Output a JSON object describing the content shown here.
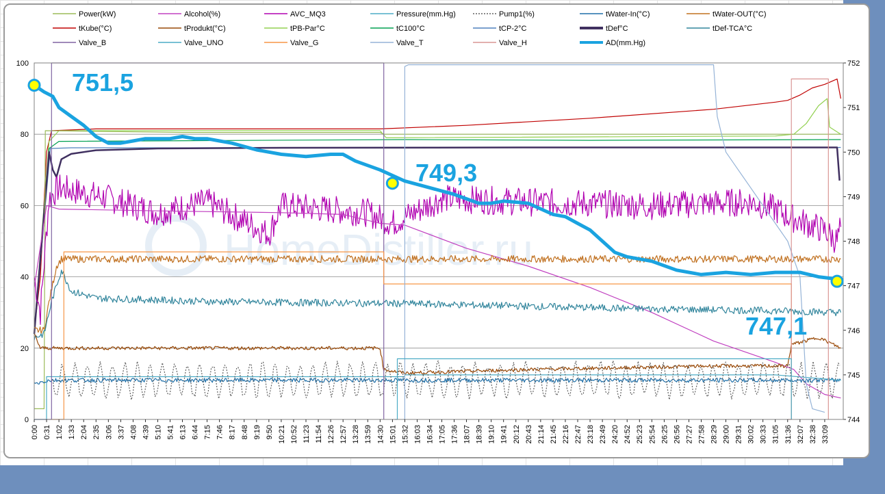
{
  "chart_data": {
    "type": "line",
    "legend": [
      {
        "name": "Power(kW)",
        "color": "#9bbb59",
        "dash": ""
      },
      {
        "name": "Alcohol(%)",
        "color": "#c040c0",
        "dash": ""
      },
      {
        "name": "AVC_MQ3",
        "color": "#b000b0",
        "dash": ""
      },
      {
        "name": "Pressure(mm.Hg)",
        "color": "#4bacc6",
        "dash": ""
      },
      {
        "name": "Pump1(%)",
        "color": "#606060",
        "dash": "2,2"
      },
      {
        "name": "tWater-In(°C)",
        "color": "#1f6fa8",
        "dash": ""
      },
      {
        "name": "tWater-OUT(°C)",
        "color": "#c0701f",
        "dash": ""
      },
      {
        "name": "tKube(°C)",
        "color": "#c00000",
        "dash": ""
      },
      {
        "name": "tProdukt(°C)",
        "color": "#984806",
        "dash": ""
      },
      {
        "name": "tPB-Par°C",
        "color": "#92d050",
        "dash": ""
      },
      {
        "name": "tC100°C",
        "color": "#00a050",
        "dash": ""
      },
      {
        "name": "tCP-2°C",
        "color": "#4f81bd",
        "dash": ""
      },
      {
        "name": "tDef°C",
        "color": "#403060",
        "dash": "",
        "thick": true
      },
      {
        "name": "tDef-TCA°C",
        "color": "#31859c",
        "dash": ""
      },
      {
        "name": "Valve_B",
        "color": "#8064a2",
        "dash": ""
      },
      {
        "name": "Valve_UNO",
        "color": "#4bacc6",
        "dash": ""
      },
      {
        "name": "Valve_G",
        "color": "#f79646",
        "dash": ""
      },
      {
        "name": "Valve_T",
        "color": "#95b3d7",
        "dash": ""
      },
      {
        "name": "Valve_H",
        "color": "#d99594",
        "dash": ""
      },
      {
        "name": "AD(mm.Hg)",
        "color": "#1aa3e0",
        "dash": "",
        "thick": true
      }
    ],
    "x_labels": [
      "0:00",
      "0:31",
      "1:02",
      "1:33",
      "2:04",
      "2:35",
      "3:06",
      "3:37",
      "4:08",
      "4:39",
      "5:10",
      "5:41",
      "6:13",
      "6:44",
      "7:15",
      "7:46",
      "8:17",
      "8:48",
      "9:19",
      "9:50",
      "10:21",
      "10:52",
      "11:23",
      "11:54",
      "12:26",
      "12:57",
      "13:28",
      "13:59",
      "14:30",
      "15:01",
      "15:32",
      "16:03",
      "16:34",
      "17:05",
      "17:36",
      "18:07",
      "18:39",
      "19:10",
      "19:41",
      "20:12",
      "20:43",
      "21:14",
      "21:45",
      "22:16",
      "22:47",
      "23:18",
      "23:49",
      "24:20",
      "24:52",
      "25:23",
      "25:54",
      "26:25",
      "26:56",
      "27:27",
      "27:58",
      "28:29",
      "29:00",
      "29:31",
      "30:02",
      "30:33",
      "31:05",
      "31:36",
      "32:07",
      "32:38",
      "33:09"
    ],
    "y_left": {
      "ticks": [
        0,
        20,
        40,
        60,
        80,
        100
      ],
      "min": 0,
      "max": 100
    },
    "y_right": {
      "ticks": [
        744,
        745,
        746,
        747,
        748,
        749,
        750,
        751,
        752
      ],
      "min": 744,
      "max": 752
    },
    "x_max": 65.5,
    "series": [
      {
        "name": "tKube(°C)",
        "axis": "left",
        "points": [
          [
            0,
            25
          ],
          [
            0.5,
            40
          ],
          [
            1.0,
            75
          ],
          [
            1.4,
            81
          ],
          [
            5,
            81.5
          ],
          [
            28,
            81.5
          ],
          [
            35,
            82.5
          ],
          [
            45,
            84.5
          ],
          [
            55,
            87
          ],
          [
            60,
            89
          ],
          [
            61,
            89.5
          ],
          [
            62,
            91
          ],
          [
            63,
            93
          ],
          [
            64,
            94
          ],
          [
            65,
            95.5
          ],
          [
            65.3,
            90
          ]
        ]
      },
      {
        "name": "tPB-Par°C",
        "axis": "left",
        "points": [
          [
            0,
            25
          ],
          [
            1.2,
            78
          ],
          [
            2,
            81
          ],
          [
            28,
            81
          ],
          [
            28.5,
            79
          ],
          [
            60,
            79.5
          ],
          [
            61.5,
            80
          ],
          [
            62.5,
            83
          ],
          [
            63.5,
            88
          ],
          [
            64.2,
            90
          ],
          [
            64.4,
            82
          ],
          [
            65.3,
            80
          ]
        ]
      },
      {
        "name": "tC100°C",
        "axis": "left",
        "points": [
          [
            0,
            24
          ],
          [
            1.2,
            76
          ],
          [
            2,
            78
          ],
          [
            30,
            78.5
          ],
          [
            45,
            78.3
          ],
          [
            65.3,
            78.5
          ]
        ]
      },
      {
        "name": "tCP-2°C",
        "axis": "left",
        "points": [
          [
            0,
            24
          ],
          [
            1.3,
            76
          ],
          [
            3,
            76.2
          ],
          [
            65.3,
            76.3
          ]
        ]
      },
      {
        "name": "tDef°C",
        "axis": "left",
        "points": [
          [
            0,
            24
          ],
          [
            1.2,
            75
          ],
          [
            1.5,
            70
          ],
          [
            1.8,
            68
          ],
          [
            2.2,
            73
          ],
          [
            3,
            74.5
          ],
          [
            5,
            75.5
          ],
          [
            10,
            76
          ],
          [
            20,
            76.2
          ],
          [
            40,
            76.3
          ],
          [
            65.0,
            76.3
          ],
          [
            65.2,
            67
          ]
        ]
      },
      {
        "name": "Power(kW)",
        "axis": "left",
        "points": [
          [
            0,
            3
          ],
          [
            0.8,
            3
          ],
          [
            0.9,
            81
          ],
          [
            12,
            80.5
          ],
          [
            28,
            80.5
          ],
          [
            28.3,
            80
          ],
          [
            61,
            80
          ],
          [
            65.3,
            80
          ]
        ]
      },
      {
        "name": "AVC_MQ3",
        "axis": "left",
        "noise": 4,
        "points": [
          [
            0,
            40
          ],
          [
            0.5,
            30
          ],
          [
            1.2,
            62
          ],
          [
            2,
            65
          ],
          [
            6,
            62
          ],
          [
            10,
            58
          ],
          [
            14,
            61
          ],
          [
            19,
            52
          ],
          [
            20,
            60
          ],
          [
            27,
            58
          ],
          [
            29,
            55
          ],
          [
            33,
            62
          ],
          [
            40,
            61
          ],
          [
            50,
            60
          ],
          [
            58,
            61
          ],
          [
            60,
            59
          ],
          [
            61,
            57
          ],
          [
            64,
            53
          ],
          [
            65,
            50
          ],
          [
            65.3,
            54
          ]
        ]
      },
      {
        "name": "Alcohol(%)",
        "axis": "left",
        "points": [
          [
            0,
            37
          ],
          [
            1.0,
            60
          ],
          [
            2,
            59
          ],
          [
            10,
            58.5
          ],
          [
            20,
            58
          ],
          [
            25,
            57.5
          ],
          [
            28,
            55
          ],
          [
            30,
            54.5
          ],
          [
            35,
            48
          ],
          [
            40,
            43
          ],
          [
            45,
            37
          ],
          [
            50,
            30
          ],
          [
            55,
            22
          ],
          [
            60,
            16
          ],
          [
            61.5,
            14
          ],
          [
            62.5,
            10
          ],
          [
            64,
            7
          ],
          [
            65.3,
            6
          ]
        ]
      },
      {
        "name": "tWater-OUT(°C)",
        "axis": "left",
        "noise": 1,
        "points": [
          [
            0,
            25
          ],
          [
            0.8,
            25
          ],
          [
            1.2,
            33
          ],
          [
            1.8,
            43
          ],
          [
            2.2,
            45
          ],
          [
            10,
            45
          ],
          [
            30,
            45
          ],
          [
            50,
            45
          ],
          [
            65.3,
            45
          ]
        ]
      },
      {
        "name": "tDef-TCA°C",
        "axis": "left",
        "noise": 1,
        "points": [
          [
            0,
            23
          ],
          [
            0.8,
            24
          ],
          [
            1.4,
            33
          ],
          [
            2.2,
            42
          ],
          [
            3,
            36
          ],
          [
            5,
            34
          ],
          [
            15,
            33
          ],
          [
            30,
            32.5
          ],
          [
            50,
            31
          ],
          [
            60,
            30.5
          ],
          [
            65.3,
            30
          ]
        ]
      },
      {
        "name": "tProdukt(°C)",
        "axis": "left",
        "noise": 0.5,
        "points": [
          [
            0,
            24
          ],
          [
            0.5,
            20
          ],
          [
            1.5,
            20
          ],
          [
            10,
            20
          ],
          [
            28,
            20
          ],
          [
            28.3,
            14
          ],
          [
            30,
            13
          ],
          [
            40,
            14
          ],
          [
            55,
            15
          ],
          [
            61,
            15
          ],
          [
            61.3,
            21
          ],
          [
            63.5,
            23
          ],
          [
            65.3,
            20
          ]
        ]
      },
      {
        "name": "tWater-In(°C)",
        "axis": "left",
        "noise": 0.6,
        "points": [
          [
            0,
            10
          ],
          [
            1.2,
            11
          ],
          [
            3,
            11
          ],
          [
            30,
            11
          ],
          [
            40,
            11
          ],
          [
            65.3,
            11
          ]
        ]
      },
      {
        "name": "Valve_UNO",
        "axis": "left",
        "points": [
          [
            0,
            0
          ],
          [
            1.0,
            0
          ],
          [
            1.0,
            12
          ],
          [
            30,
            12
          ],
          [
            30,
            12.5
          ],
          [
            60,
            12.5
          ],
          [
            65.3,
            11
          ]
        ]
      },
      {
        "name": "Pump1(%)",
        "axis": "left",
        "pump": true,
        "points": [
          [
            0,
            2
          ],
          [
            1.5,
            2
          ],
          [
            2.5,
            12
          ],
          [
            65.3,
            10
          ]
        ]
      },
      {
        "name": "Valve_B",
        "axis": "left",
        "points": [
          [
            0,
            0
          ],
          [
            1.4,
            0
          ],
          [
            1.4,
            100
          ],
          [
            28.3,
            100
          ],
          [
            28.3,
            0
          ]
        ]
      },
      {
        "name": "Valve_G",
        "axis": "left",
        "points": [
          [
            1.4,
            0
          ],
          [
            2.4,
            0
          ],
          [
            2.4,
            47
          ],
          [
            28.3,
            47
          ],
          [
            28.3,
            38
          ],
          [
            61.3,
            38
          ],
          [
            61.3,
            0
          ]
        ]
      },
      {
        "name": "Valve_T",
        "axis": "left",
        "points": [
          [
            29.9,
            0
          ],
          [
            30,
            0
          ],
          [
            30,
            99
          ],
          [
            30.3,
            99.5
          ],
          [
            55,
            99.5
          ],
          [
            55.3,
            85
          ],
          [
            56,
            75
          ],
          [
            57,
            70
          ],
          [
            58,
            65
          ],
          [
            59,
            60
          ],
          [
            60,
            55
          ],
          [
            61,
            50
          ],
          [
            62,
            40
          ],
          [
            62.5,
            10
          ],
          [
            63,
            3
          ],
          [
            64,
            2
          ]
        ]
      },
      {
        "name": "Valve_H",
        "axis": "left",
        "points": [
          [
            61,
            0
          ],
          [
            61.3,
            0
          ],
          [
            61.3,
            95.5
          ],
          [
            64.3,
            95.5
          ],
          [
            64.3,
            0
          ]
        ]
      },
      {
        "name": "Pressure(mm.Hg)",
        "axis": "left",
        "points": [
          [
            29.2,
            0
          ],
          [
            29.4,
            0
          ],
          [
            29.4,
            17
          ],
          [
            61.3,
            17
          ],
          [
            61.3,
            0
          ]
        ]
      },
      {
        "name": "AD(mm.Hg)",
        "axis": "right",
        "points": [
          [
            0,
            751.5
          ],
          [
            0.8,
            751.35
          ],
          [
            1.5,
            751.25
          ],
          [
            2.0,
            751.0
          ],
          [
            3,
            750.8
          ],
          [
            4,
            750.6
          ],
          [
            5,
            750.35
          ],
          [
            6,
            750.2
          ],
          [
            7,
            750.2
          ],
          [
            8,
            750.25
          ],
          [
            9,
            750.3
          ],
          [
            10,
            750.3
          ],
          [
            11,
            750.3
          ],
          [
            12,
            750.35
          ],
          [
            13,
            750.3
          ],
          [
            14,
            750.3
          ],
          [
            15,
            750.25
          ],
          [
            16,
            750.2
          ],
          [
            18,
            750.05
          ],
          [
            20,
            749.95
          ],
          [
            22,
            749.9
          ],
          [
            24,
            749.95
          ],
          [
            25,
            749.95
          ],
          [
            26,
            749.8
          ],
          [
            28,
            749.6
          ],
          [
            30,
            749.35
          ],
          [
            32,
            749.2
          ],
          [
            34,
            749.05
          ],
          [
            35,
            748.95
          ],
          [
            36,
            748.85
          ],
          [
            37,
            748.85
          ],
          [
            38,
            748.9
          ],
          [
            40,
            748.85
          ],
          [
            42,
            748.6
          ],
          [
            43,
            748.55
          ],
          [
            44,
            748.4
          ],
          [
            45,
            748.25
          ],
          [
            46,
            748.0
          ],
          [
            47,
            747.75
          ],
          [
            48,
            747.65
          ],
          [
            50,
            747.55
          ],
          [
            52,
            747.35
          ],
          [
            54,
            747.25
          ],
          [
            56,
            747.3
          ],
          [
            58,
            747.25
          ],
          [
            60,
            747.3
          ],
          [
            62,
            747.3
          ],
          [
            63.5,
            747.2
          ],
          [
            65.0,
            747.15
          ],
          [
            65.3,
            747.2
          ]
        ]
      }
    ],
    "markers": [
      {
        "x": 0,
        "y": 751.5,
        "label": "751,5"
      },
      {
        "x": 29.0,
        "y": 749.3,
        "label": "749,3"
      },
      {
        "x": 65.0,
        "y": 747.1,
        "label": "747,1"
      }
    ],
    "watermark": "HomeDistiller.ru"
  }
}
